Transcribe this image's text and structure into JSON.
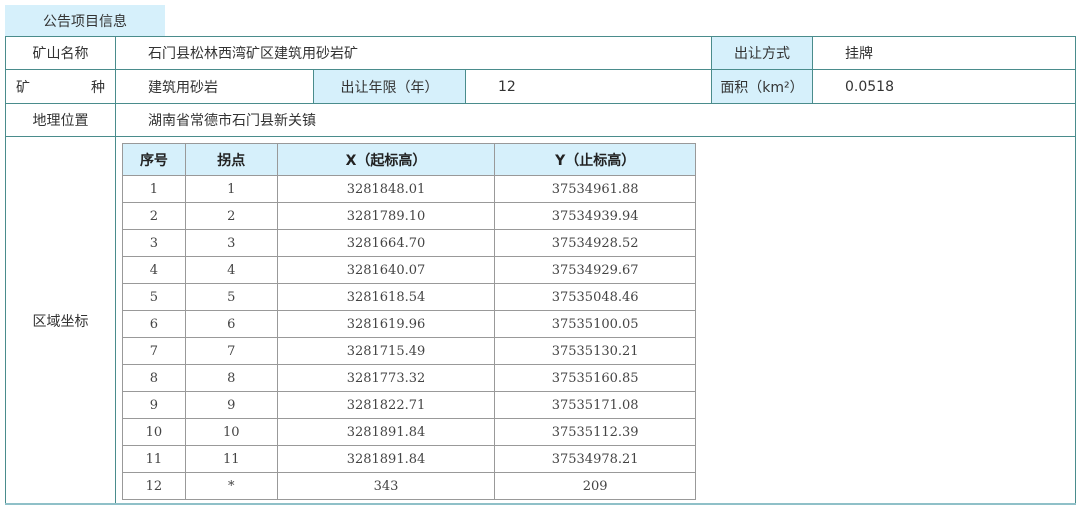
{
  "tab": {
    "label": "公告项目信息"
  },
  "info": {
    "mine_name_label": "矿山名称",
    "mine_name": "石门县松林西湾矿区建筑用砂岩矿",
    "transfer_method_label": "出让方式",
    "transfer_method": "挂牌",
    "mineral_label_1": "矿",
    "mineral_label_2": "种",
    "mineral": "建筑用砂岩",
    "term_label": "出让年限（年）",
    "term": "12",
    "area_label": "面积（km²）",
    "area": "0.0518",
    "location_label": "地理位置",
    "location": "湖南省常德市石门县新关镇",
    "coords_label": "区域坐标"
  },
  "coords": {
    "headers": [
      "序号",
      "拐点",
      "X（起标高）",
      "Y（止标高）"
    ],
    "rows": [
      [
        "1",
        "1",
        "3281848.01",
        "37534961.88"
      ],
      [
        "2",
        "2",
        "3281789.10",
        "37534939.94"
      ],
      [
        "3",
        "3",
        "3281664.70",
        "37534928.52"
      ],
      [
        "4",
        "4",
        "3281640.07",
        "37534929.67"
      ],
      [
        "5",
        "5",
        "3281618.54",
        "37535048.46"
      ],
      [
        "6",
        "6",
        "3281619.96",
        "37535100.05"
      ],
      [
        "7",
        "7",
        "3281715.49",
        "37535130.21"
      ],
      [
        "8",
        "8",
        "3281773.32",
        "37535160.85"
      ],
      [
        "9",
        "9",
        "3281822.71",
        "37535171.08"
      ],
      [
        "10",
        "10",
        "3281891.84",
        "37535112.39"
      ],
      [
        "11",
        "11",
        "3281891.84",
        "37534978.21"
      ],
      [
        "12",
        "*",
        "343",
        "209"
      ]
    ]
  },
  "colors": {
    "header_bg": "#d6f0fb",
    "border": "#4a8c8c"
  }
}
